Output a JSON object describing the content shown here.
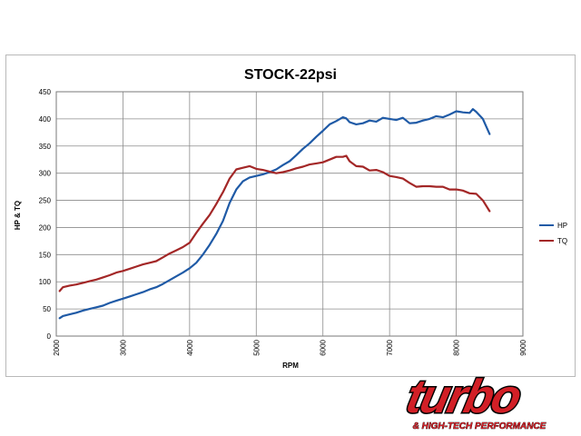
{
  "chart_data": {
    "type": "line",
    "title": "STOCK-22psi",
    "xlabel": "RPM",
    "ylabel": "HP & TQ",
    "xlim": [
      2000,
      9000
    ],
    "ylim": [
      0,
      450
    ],
    "x_ticks": [
      2000,
      3000,
      4000,
      5000,
      6000,
      7000,
      8000,
      9000
    ],
    "y_ticks": [
      0,
      50,
      100,
      150,
      200,
      250,
      300,
      350,
      400,
      450
    ],
    "x_tick_rotation": "vertical",
    "grid": true,
    "legend_position": "right",
    "series": [
      {
        "name": "HP",
        "color": "#1f5aa6",
        "points": [
          [
            2050,
            33
          ],
          [
            2100,
            37
          ],
          [
            2200,
            40
          ],
          [
            2300,
            43
          ],
          [
            2400,
            47
          ],
          [
            2500,
            50
          ],
          [
            2600,
            53
          ],
          [
            2700,
            56
          ],
          [
            2800,
            61
          ],
          [
            2900,
            65
          ],
          [
            3000,
            69
          ],
          [
            3100,
            73
          ],
          [
            3200,
            77
          ],
          [
            3300,
            81
          ],
          [
            3400,
            86
          ],
          [
            3500,
            90
          ],
          [
            3600,
            96
          ],
          [
            3700,
            103
          ],
          [
            3800,
            110
          ],
          [
            3900,
            117
          ],
          [
            4000,
            125
          ],
          [
            4100,
            135
          ],
          [
            4200,
            150
          ],
          [
            4300,
            168
          ],
          [
            4400,
            188
          ],
          [
            4500,
            212
          ],
          [
            4600,
            245
          ],
          [
            4700,
            270
          ],
          [
            4800,
            285
          ],
          [
            4900,
            292
          ],
          [
            5000,
            295
          ],
          [
            5100,
            298
          ],
          [
            5200,
            302
          ],
          [
            5300,
            307
          ],
          [
            5400,
            315
          ],
          [
            5500,
            322
          ],
          [
            5600,
            333
          ],
          [
            5700,
            345
          ],
          [
            5800,
            355
          ],
          [
            5900,
            367
          ],
          [
            6000,
            378
          ],
          [
            6100,
            390
          ],
          [
            6200,
            396
          ],
          [
            6300,
            403
          ],
          [
            6350,
            401
          ],
          [
            6400,
            394
          ],
          [
            6500,
            390
          ],
          [
            6600,
            392
          ],
          [
            6700,
            397
          ],
          [
            6800,
            395
          ],
          [
            6900,
            402
          ],
          [
            7000,
            400
          ],
          [
            7100,
            398
          ],
          [
            7200,
            402
          ],
          [
            7300,
            392
          ],
          [
            7400,
            393
          ],
          [
            7500,
            397
          ],
          [
            7600,
            400
          ],
          [
            7700,
            405
          ],
          [
            7800,
            403
          ],
          [
            7900,
            408
          ],
          [
            8000,
            414
          ],
          [
            8100,
            412
          ],
          [
            8200,
            411
          ],
          [
            8250,
            418
          ],
          [
            8300,
            413
          ],
          [
            8400,
            400
          ],
          [
            8500,
            372
          ]
        ]
      },
      {
        "name": "TQ",
        "color": "#a32727",
        "points": [
          [
            2050,
            83
          ],
          [
            2100,
            90
          ],
          [
            2200,
            93
          ],
          [
            2300,
            95
          ],
          [
            2400,
            98
          ],
          [
            2500,
            101
          ],
          [
            2600,
            104
          ],
          [
            2700,
            108
          ],
          [
            2800,
            112
          ],
          [
            2900,
            117
          ],
          [
            3000,
            120
          ],
          [
            3100,
            124
          ],
          [
            3200,
            128
          ],
          [
            3300,
            132
          ],
          [
            3400,
            135
          ],
          [
            3500,
            138
          ],
          [
            3600,
            145
          ],
          [
            3700,
            152
          ],
          [
            3800,
            158
          ],
          [
            3900,
            164
          ],
          [
            4000,
            172
          ],
          [
            4100,
            190
          ],
          [
            4200,
            207
          ],
          [
            4300,
            223
          ],
          [
            4400,
            243
          ],
          [
            4500,
            265
          ],
          [
            4600,
            290
          ],
          [
            4700,
            307
          ],
          [
            4800,
            310
          ],
          [
            4900,
            313
          ],
          [
            5000,
            308
          ],
          [
            5100,
            306
          ],
          [
            5200,
            303
          ],
          [
            5300,
            300
          ],
          [
            5400,
            302
          ],
          [
            5500,
            305
          ],
          [
            5600,
            309
          ],
          [
            5700,
            312
          ],
          [
            5800,
            316
          ],
          [
            5900,
            318
          ],
          [
            6000,
            320
          ],
          [
            6100,
            325
          ],
          [
            6200,
            330
          ],
          [
            6300,
            330
          ],
          [
            6350,
            332
          ],
          [
            6400,
            322
          ],
          [
            6500,
            313
          ],
          [
            6600,
            312
          ],
          [
            6700,
            305
          ],
          [
            6800,
            306
          ],
          [
            6900,
            302
          ],
          [
            7000,
            295
          ],
          [
            7100,
            293
          ],
          [
            7200,
            290
          ],
          [
            7300,
            282
          ],
          [
            7400,
            275
          ],
          [
            7500,
            276
          ],
          [
            7600,
            276
          ],
          [
            7700,
            275
          ],
          [
            7800,
            275
          ],
          [
            7900,
            270
          ],
          [
            8000,
            270
          ],
          [
            8100,
            268
          ],
          [
            8200,
            263
          ],
          [
            8300,
            262
          ],
          [
            8400,
            250
          ],
          [
            8500,
            230
          ]
        ]
      }
    ]
  },
  "logo": {
    "text": "turbo",
    "subtitle": "& HIGH-TECH PERFORMANCE",
    "color": "#d21f26",
    "outline_color": "#000000"
  }
}
